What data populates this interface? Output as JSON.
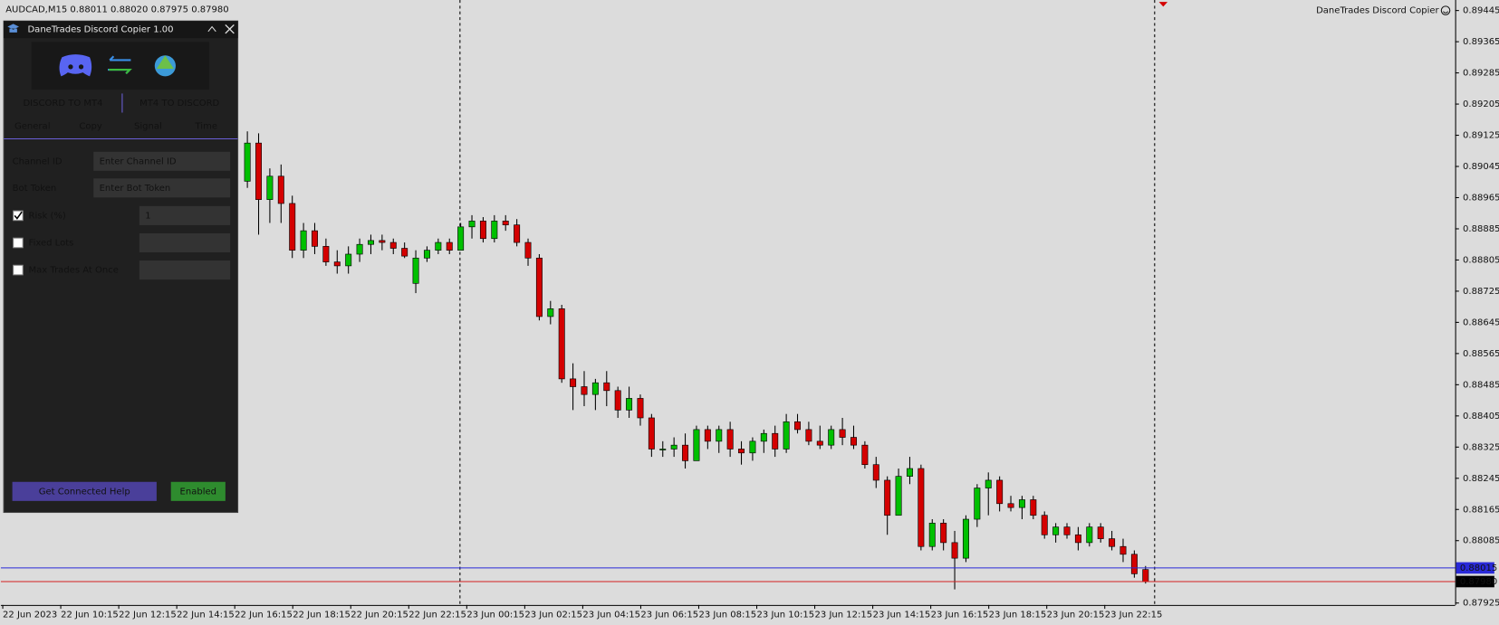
{
  "header": "AUDCAD,M15  0.88011 0.88020 0.87975 0.87980",
  "indicator_label": "DaneTrades Discord Copier",
  "panel": {
    "title": "DaneTrades Discord Copier 1.00",
    "modes": [
      "DISCORD TO MT4",
      "MT4 TO DISCORD"
    ],
    "tabs": [
      "General",
      "Copy",
      "Signal",
      "Time"
    ],
    "fields": [
      {
        "label": "Channel ID",
        "placeholder": "Enter Channel ID"
      },
      {
        "label": "Bot Token",
        "placeholder": "Enter Bot Token"
      }
    ],
    "options": [
      {
        "label": "Risk (%)",
        "checked": true,
        "value": "1"
      },
      {
        "label": "Fixed Lots",
        "checked": false
      },
      {
        "label": "Max Trades At Once",
        "checked": false
      }
    ],
    "buttons": [
      "Get Connected Help",
      "Enabled"
    ]
  },
  "chart_data": {
    "type": "candlestick",
    "up_color": "#00c000",
    "down_color": "#d40000",
    "ylim": [
      0.89472,
      0.8792
    ],
    "yticks": [
      0.89445,
      0.89365,
      0.89285,
      {
        "value": 0.89205,
        "label": "0.89205"
      },
      0.89125,
      0.89045,
      0.88965,
      0.88885,
      0.88805,
      0.88725,
      0.88645,
      0.88565,
      0.88485,
      0.88405,
      0.88325,
      0.88245,
      0.88165,
      0.88085,
      0.87925
    ],
    "price_lines": [
      {
        "value": 0.88015,
        "label": "0.88015",
        "color": "#2a2ad8"
      },
      {
        "value": 0.8798,
        "label": "0.87980",
        "color": "#d42020"
      }
    ],
    "time_labels": [
      "22 Jun 2023",
      "22 Jun 10:15",
      "22 Jun 12:15",
      "22 Jun 14:15",
      "22 Jun 16:15",
      "22 Jun 18:15",
      "22 Jun 20:15",
      "22 Jun 22:15",
      "23 Jun 00:15",
      "23 Jun 02:15",
      "23 Jun 04:15",
      "23 Jun 06:15",
      "23 Jun 08:15",
      "23 Jun 10:15",
      "23 Jun 12:15",
      "23 Jun 14:15",
      "23 Jun 16:15",
      "23 Jun 18:15",
      "23 Jun 20:15",
      "23 Jun 22:15"
    ],
    "open": [
      0.89007,
      0.89105,
      0.8896,
      0.8902,
      0.8895,
      0.8883,
      0.8888,
      0.8884,
      0.888,
      0.8879,
      0.8882,
      0.88845,
      0.88855,
      0.8885,
      0.88835,
      0.88745,
      0.8881,
      0.8883,
      0.8885,
      0.8883,
      0.8889,
      0.88905,
      0.8886,
      0.88905,
      0.88895,
      0.8885,
      0.8881,
      0.8866,
      0.8868,
      0.885,
      0.8848,
      0.8846,
      0.8849,
      0.8847,
      0.8842,
      0.8845,
      0.884,
      0.8832,
      0.8832,
      0.8833,
      0.8829,
      0.8837,
      0.8834,
      0.8837,
      0.8832,
      0.8831,
      0.8834,
      0.8836,
      0.8832,
      0.8839,
      0.8837,
      0.8834,
      0.8833,
      0.8837,
      0.8835,
      0.8833,
      0.8828,
      0.8824,
      0.8815,
      0.8825,
      0.8827,
      0.8807,
      0.8813,
      0.8808,
      0.8804,
      0.8814,
      0.8822,
      0.8824,
      0.8818,
      0.8817,
      0.8819,
      0.8815,
      0.881,
      0.8812,
      0.881,
      0.8808,
      0.8812,
      0.8809,
      0.8807,
      0.8805,
      0.88011
    ],
    "high": [
      0.89135,
      0.8913,
      0.8904,
      0.8905,
      0.8897,
      0.889,
      0.889,
      0.8886,
      0.8883,
      0.8884,
      0.8886,
      0.8887,
      0.8887,
      0.8886,
      0.8885,
      0.8883,
      0.8884,
      0.8886,
      0.8886,
      0.889,
      0.8892,
      0.88915,
      0.8892,
      0.8892,
      0.8891,
      0.8886,
      0.8882,
      0.887,
      0.8869,
      0.8854,
      0.8852,
      0.885,
      0.8852,
      0.8848,
      0.8848,
      0.8846,
      0.8841,
      0.8834,
      0.8835,
      0.8836,
      0.8838,
      0.8838,
      0.8838,
      0.8839,
      0.8834,
      0.8835,
      0.8837,
      0.8838,
      0.8841,
      0.8841,
      0.8839,
      0.8838,
      0.8838,
      0.884,
      0.8838,
      0.8834,
      0.883,
      0.8825,
      0.8827,
      0.883,
      0.8828,
      0.8814,
      0.8814,
      0.8811,
      0.8815,
      0.8823,
      0.8826,
      0.8825,
      0.882,
      0.882,
      0.882,
      0.8816,
      0.8813,
      0.8813,
      0.8812,
      0.8813,
      0.8813,
      0.8811,
      0.8809,
      0.8806,
      0.8802
    ],
    "low": [
      0.8899,
      0.8887,
      0.889,
      0.889,
      0.8881,
      0.8881,
      0.8882,
      0.8879,
      0.8877,
      0.8877,
      0.888,
      0.8882,
      0.8883,
      0.8882,
      0.8881,
      0.8872,
      0.888,
      0.8882,
      0.8882,
      0.8883,
      0.8886,
      0.8885,
      0.8885,
      0.8888,
      0.8884,
      0.8879,
      0.8865,
      0.8864,
      0.8849,
      0.8842,
      0.8843,
      0.8842,
      0.8843,
      0.884,
      0.884,
      0.8838,
      0.883,
      0.883,
      0.883,
      0.8827,
      0.8829,
      0.8832,
      0.8831,
      0.883,
      0.8828,
      0.8829,
      0.8831,
      0.883,
      0.8831,
      0.8836,
      0.8833,
      0.8832,
      0.8832,
      0.8833,
      0.8832,
      0.8827,
      0.8822,
      0.881,
      0.8815,
      0.8823,
      0.8806,
      0.8806,
      0.8806,
      0.8796,
      0.8803,
      0.8812,
      0.8815,
      0.8816,
      0.8816,
      0.8814,
      0.8814,
      0.8809,
      0.8808,
      0.8809,
      0.8806,
      0.8807,
      0.8808,
      0.8806,
      0.8803,
      0.8799,
      0.87975
    ],
    "close": [
      0.89105,
      0.8896,
      0.8902,
      0.8895,
      0.8883,
      0.8888,
      0.8884,
      0.888,
      0.8879,
      0.8882,
      0.88845,
      0.88855,
      0.8885,
      0.88835,
      0.88815,
      0.8881,
      0.8883,
      0.8885,
      0.8883,
      0.8889,
      0.88905,
      0.8886,
      0.88905,
      0.88895,
      0.8885,
      0.8881,
      0.8866,
      0.8868,
      0.885,
      0.8848,
      0.8846,
      0.8849,
      0.8847,
      0.8842,
      0.8845,
      0.884,
      0.8832,
      0.8832,
      0.8833,
      0.8829,
      0.8837,
      0.8834,
      0.8837,
      0.8832,
      0.8831,
      0.8834,
      0.8836,
      0.8832,
      0.8839,
      0.8837,
      0.8834,
      0.8833,
      0.8837,
      0.8835,
      0.8833,
      0.8828,
      0.8824,
      0.8815,
      0.8825,
      0.8827,
      0.8807,
      0.8813,
      0.8808,
      0.8804,
      0.8814,
      0.8822,
      0.8824,
      0.8818,
      0.8817,
      0.8819,
      0.8815,
      0.881,
      0.8812,
      0.881,
      0.8808,
      0.8812,
      0.8809,
      0.8807,
      0.8805,
      0.88,
      0.8798
    ]
  }
}
